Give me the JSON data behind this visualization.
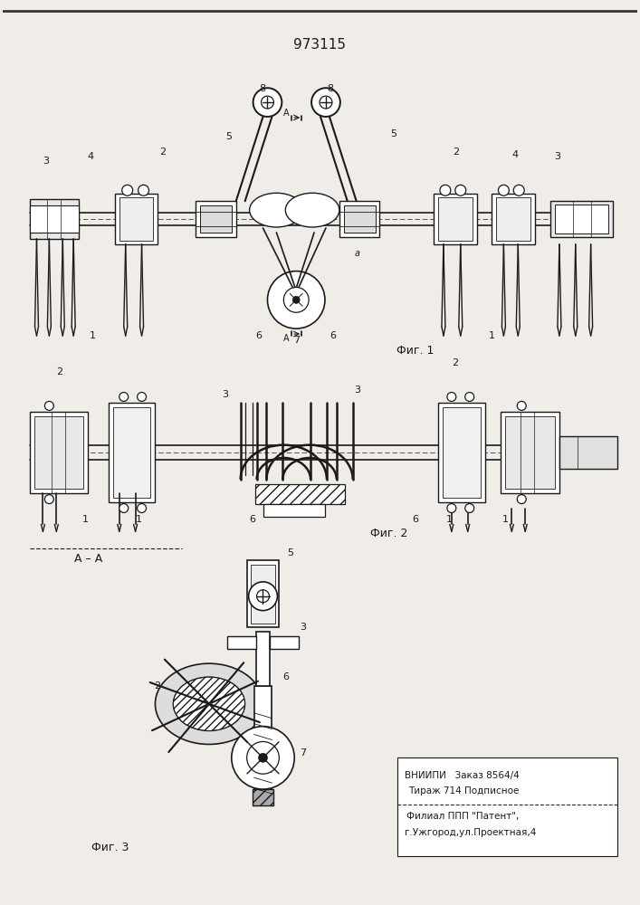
{
  "title": "973115",
  "bg_color": "#f0ede8",
  "fig_width": 7.07,
  "fig_height": 10.0,
  "patent": {
    "line1": "ВНИИПИ   Заказ 8564/4",
    "line2": "Тираж 714 Подписное",
    "line3": "Филиал ППП \"Патент\",",
    "line4": "г.Ужгород,ул.Проектная,4"
  }
}
